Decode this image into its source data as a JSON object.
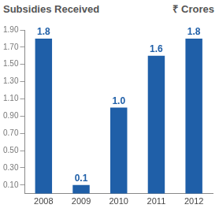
{
  "chart_data": {
    "type": "bar",
    "title": "Subsidies Received",
    "subtitle": "₹ Crores",
    "categories": [
      "2008",
      "2009",
      "2010",
      "2011",
      "2012"
    ],
    "values": [
      1.8,
      0.1,
      1.0,
      1.6,
      1.8
    ],
    "value_labels": [
      "1.8",
      "0.1",
      "1.0",
      "1.6",
      "1.8"
    ],
    "color": "#1f5fa8",
    "ylim": [
      0,
      1.9
    ],
    "yticks": [
      {
        "value": 0.1,
        "label": "0.10"
      },
      {
        "value": 0.3,
        "label": "0.30"
      },
      {
        "value": 0.5,
        "label": "0.50"
      },
      {
        "value": 0.7,
        "label": "0.70"
      },
      {
        "value": 0.9,
        "label": "0.90"
      },
      {
        "value": 1.1,
        "label": "1.10"
      },
      {
        "value": 1.3,
        "label": "1.30"
      },
      {
        "value": 1.5,
        "label": "1.50"
      },
      {
        "value": 1.7,
        "label": "1.70"
      },
      {
        "value": 1.9,
        "label": "1.90"
      }
    ],
    "grid": false,
    "data_labels": true
  }
}
